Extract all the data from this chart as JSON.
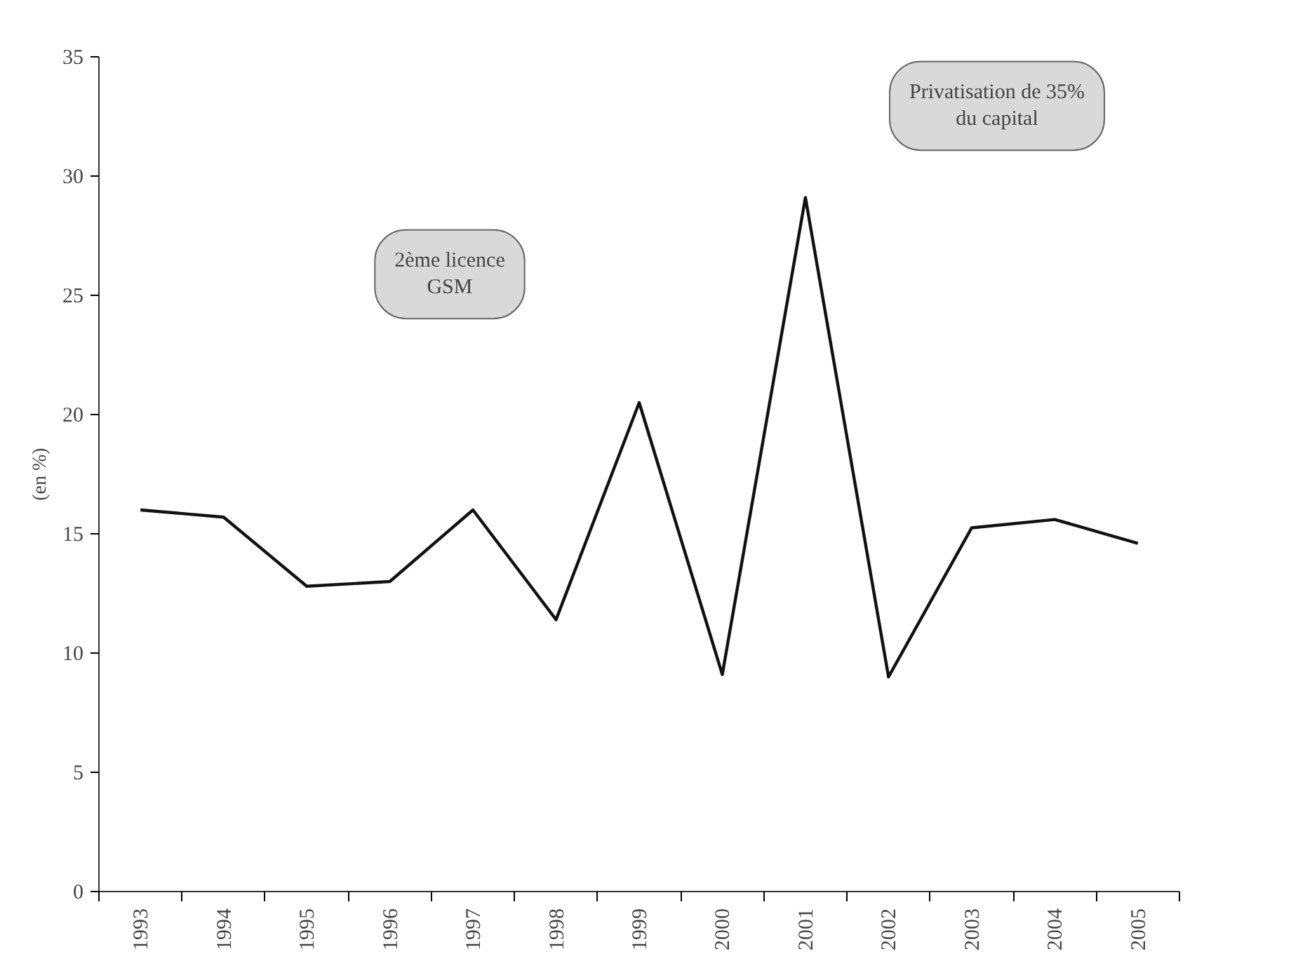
{
  "chart_data": {
    "type": "line",
    "ylabel": "(en %)",
    "categories": [
      "1993",
      "1994",
      "1995",
      "1996",
      "1997",
      "1998",
      "1999",
      "2000",
      "2001",
      "2002",
      "2003",
      "2004",
      "2005"
    ],
    "series": [
      {
        "color": "#111111",
        "values": [
          16.0,
          15.7,
          12.8,
          13.0,
          16.0,
          11.4,
          20.5,
          9.1,
          29.1,
          9.0,
          15.25,
          15.6,
          14.6
        ]
      }
    ],
    "ylim": [
      0,
      35
    ],
    "yticks": [
      0,
      5,
      10,
      15,
      20,
      25,
      30,
      35
    ],
    "grid": false,
    "marker": "none",
    "line_style": "solid",
    "annotations": [
      "2ème licence GSM",
      "Privatisation de 35% du capital"
    ]
  }
}
